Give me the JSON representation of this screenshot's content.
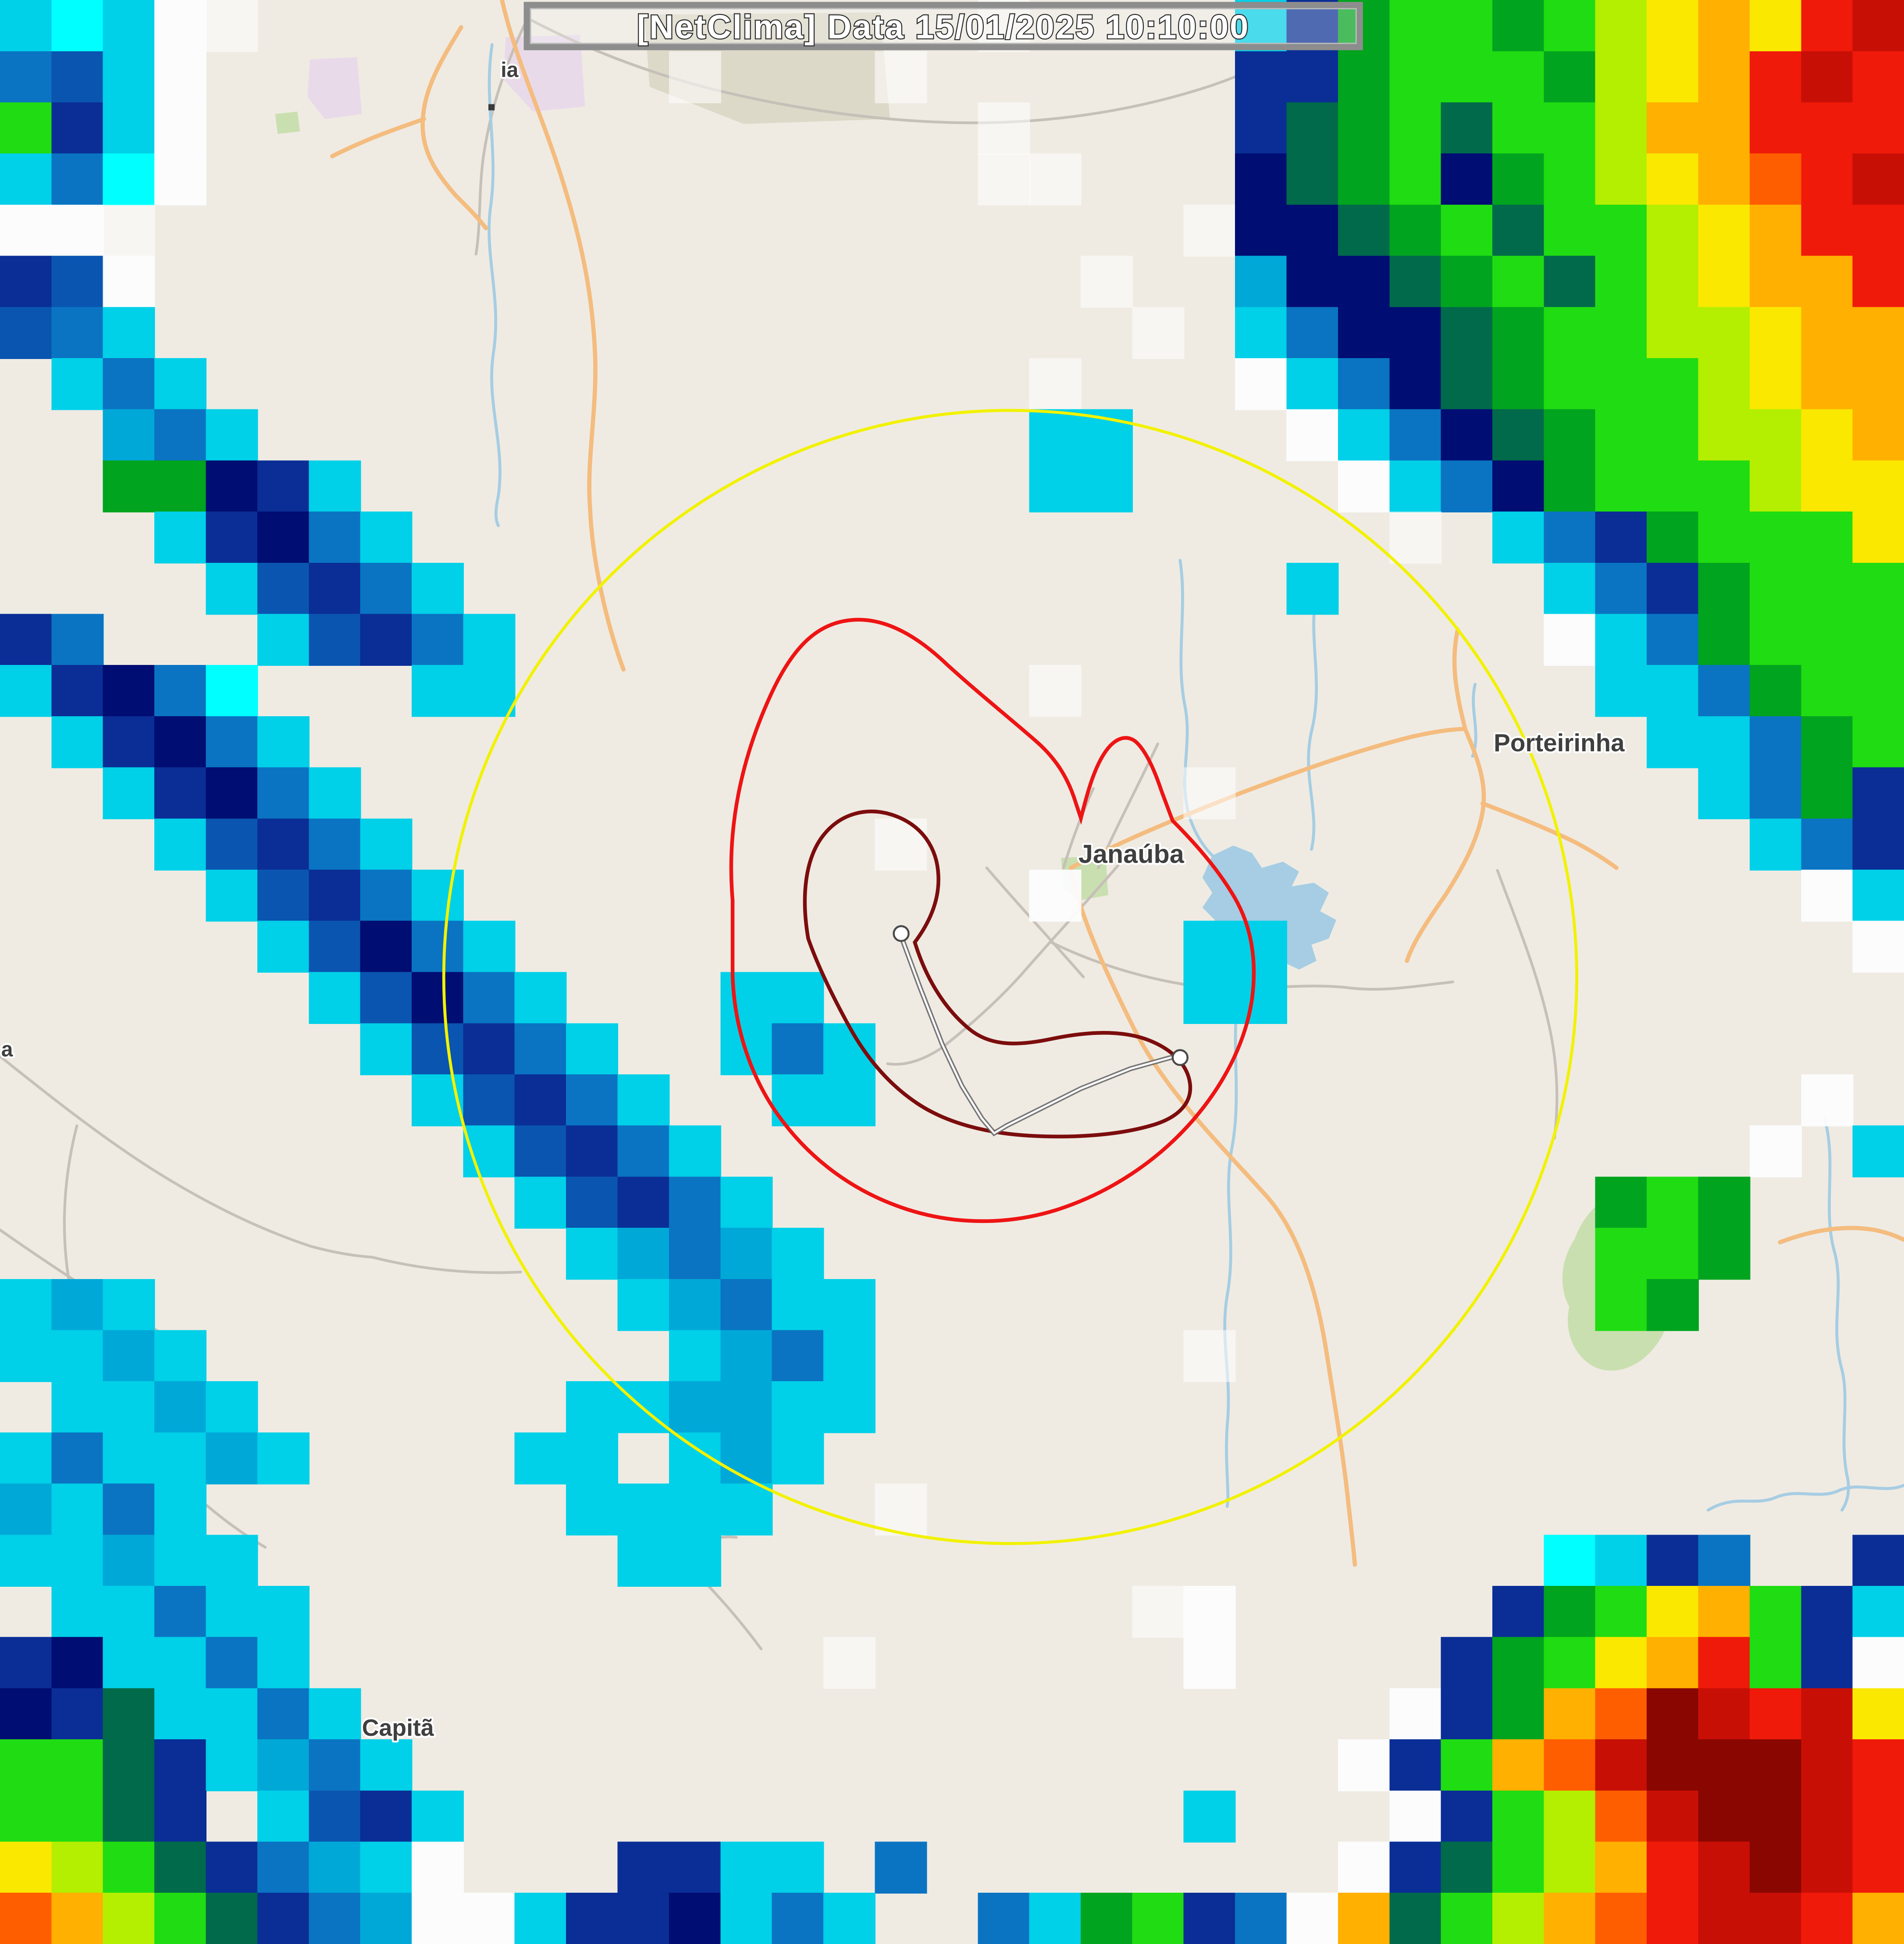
{
  "header": {
    "title": "[NetClima] Data 15/01/2025 10:10:00",
    "text_color": "#ffffff",
    "outline_color": "#2a2a2a",
    "border_color": "#8d8d8d",
    "background": "rgba(245,245,245,0.30)"
  },
  "map": {
    "background": "#efebe3",
    "water_color": "#a6cde3",
    "road_major_color": "#f4bc7e",
    "road_minor_color": "#c6c0b8",
    "green_area_color": "#cadfb0",
    "landuse_color": "#e9daea",
    "urban_color": "#d9d6c3",
    "label_color": "#3f3f3f",
    "labels": [
      {
        "id": "city-janauba",
        "text": "Janaúba"
      },
      {
        "id": "city-porteirinha",
        "text": "Porteirinha"
      },
      {
        "id": "city-capitao",
        "text": "Capitã"
      },
      {
        "id": "city-partial-ia",
        "text": "ia"
      },
      {
        "id": "city-partial-a",
        "text": "a"
      }
    ]
  },
  "rings": {
    "range_ring_color": "#f2f200",
    "alert_ring_color": "#ee1414",
    "storm_ring_color": "#7c0d0d",
    "track_casing_color": "#6a6a6a",
    "track_core_color": "#ffffff"
  },
  "radar": {
    "palette": {
      "W": "rgba(255,255,255,0.55)",
      "w": "rgba(253,253,255,0.93)",
      "c": "#00ffff",
      "C": "#00d0e8",
      "T": "#00a8d8",
      "b": "#0a74c2",
      "B": "#0a55b0",
      "n": "#0a2e96",
      "N": "#000d72",
      "g": "#20dc12",
      "G": "#00a41e",
      "d": "#006a4a",
      "l": "#b4ee00",
      "y": "#fae800",
      "o": "#ffb000",
      "O": "#ff5e00",
      "r": "#f01a0a",
      "R": "#c80f06",
      "m": "#8a0600"
    },
    "grid": [
      "CcCwW..............W....CnGggGglyoyrR",
      "bBCw.........W...W......nnGgggGlyorRr",
      "gnCw...............W....ndGgdggloorrr",
      "Cbcw...............WW...NdGgNGglyoOrR",
      "wwW....................WNNdGgdgglyorr",
      "nBw..................W..TNNdGgdglyoor",
      "BbC...................W.CbNNdGggllyoo",
      ".CbC................W...wCbNdGggglyoo",
      "..TbC...............CC...wCbNdGggllyo",
      "..GGNnC.............CC....wCbNGggglyy",
      "...CnNbC...................W.CbnGgggy",
      "....CBnbC................C....CbnGggg",
      "nb...CBnbC....................wCbGggg",
      "CnNbc...CC..........W..........CCbGgg",
      ".CnNbC..........................CCbGg",
      "..CnNbC................W.........CbGn",
      "...CBnbC.........W................Cbn",
      "....CBnbC...........w..............wC",
      ".....CBNbC.............CC...........w",
      "......CBNbC...CC.......CC............",
      ".......CBnbC..CbC....................",
      "........CBnbC..CC..................w.",
      ".........CBnbC....................w.C",
      "..........CBnbC................GgG...",
      "...........CTbTC...............ggG...",
      "CTC.........CTbCC..............gG....",
      "CCTC.........CTbC......W.............",
      ".CCTC......CCTTCC....................",
      "CbCCTC....CC.CTC.....................",
      "TCbC.......CCCC..W...................",
      "CCTCC.......CC................cCnb..n",
      ".CCbCC................Ww.....nGgyognC",
      "nNCCbC..........W......w....nGgyorgnw",
      "NndCCbC....................wnGoOmRrRy",
      "ggdnCTbC..................wngoORmmmRr",
      "ggdn.CBnC..............C...wnglORmmRr",
      "ylgdnbTCw...nnCC.b........wndglorRmRr",
      "OolgdnbTwwCnnNCbC..bCGgnbwodgloOrRRro"
    ]
  }
}
